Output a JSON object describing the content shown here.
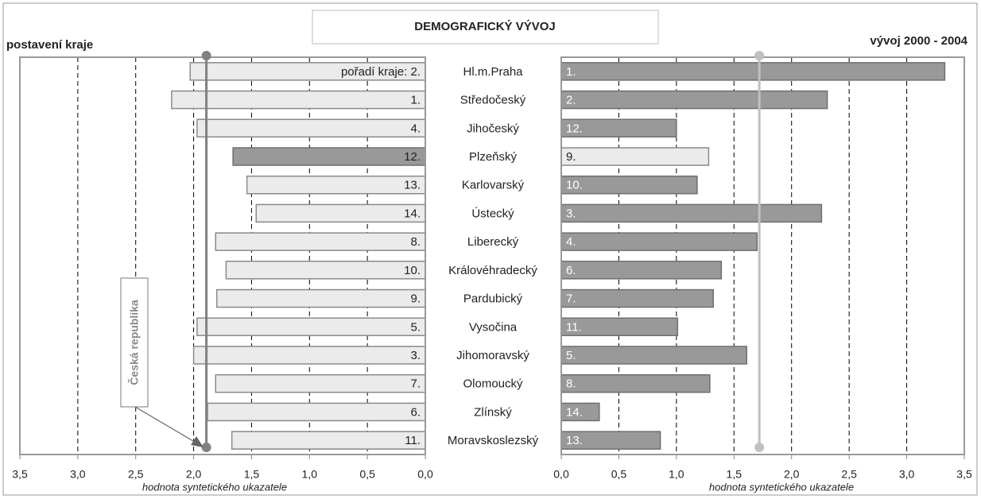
{
  "chart_data": {
    "type": "bar",
    "title": "DEMOGRAFICKÝ VÝVOJ",
    "categories": [
      "Hl.m.Praha",
      "Středočeský",
      "Jihočeský",
      "Plzeňský",
      "Karlovarský",
      "Ústecký",
      "Liberecký",
      "Královéhradecký",
      "Pardubický",
      "Vysočina",
      "Jihomoravský",
      "Olomoucký",
      "Zlínský",
      "Moravskoslezský"
    ],
    "left": {
      "label": "postavení kraje",
      "xlabel": "hodnota syntetického ukazatele",
      "reversed": true,
      "xlim": [
        0,
        3.5
      ],
      "xticks": [
        {
          "value": 0,
          "label": "0,0"
        },
        {
          "value": 0.5,
          "label": "0,5"
        },
        {
          "value": 1,
          "label": "1,0"
        },
        {
          "value": 1.5,
          "label": "1,5"
        },
        {
          "value": 2,
          "label": "2,0"
        },
        {
          "value": 2.5,
          "label": "2,5"
        },
        {
          "value": 3,
          "label": "3,0"
        },
        {
          "value": 3.5,
          "label": "3,5"
        }
      ],
      "values": [
        2.03,
        2.19,
        1.97,
        1.66,
        1.54,
        1.46,
        1.81,
        1.72,
        1.8,
        1.97,
        2.0,
        1.81,
        1.88,
        1.67
      ],
      "rank_labels": [
        "pořadí kraje: 2.",
        "1.",
        "4.",
        "12.",
        "13.",
        "14.",
        "8.",
        "10.",
        "9.",
        "5.",
        "3.",
        "7.",
        "6.",
        "11."
      ],
      "colors": [
        "#ebebeb",
        "#ebebeb",
        "#ebebeb",
        "#999999",
        "#ebebeb",
        "#ebebeb",
        "#ebebeb",
        "#ebebeb",
        "#ebebeb",
        "#ebebeb",
        "#ebebeb",
        "#ebebeb",
        "#ebebeb",
        "#ebebeb"
      ],
      "reference": {
        "name": "Česká republika",
        "value": 1.89,
        "color": "#808080"
      }
    },
    "right": {
      "label": "vývoj 2000 - 2004",
      "xlabel": "hodnota syntetického ukazatele",
      "reversed": false,
      "xlim": [
        0,
        3.5
      ],
      "xticks": [
        {
          "value": 0,
          "label": "0,0"
        },
        {
          "value": 0.5,
          "label": "0,5"
        },
        {
          "value": 1,
          "label": "1,0"
        },
        {
          "value": 1.5,
          "label": "1,5"
        },
        {
          "value": 2,
          "label": "2,0"
        },
        {
          "value": 2.5,
          "label": "2,5"
        },
        {
          "value": 3,
          "label": "3,0"
        },
        {
          "value": 3.5,
          "label": "3,5"
        }
      ],
      "values": [
        3.33,
        2.31,
        1.0,
        1.28,
        1.18,
        2.26,
        1.7,
        1.39,
        1.32,
        1.01,
        1.61,
        1.29,
        0.33,
        0.86
      ],
      "rank_labels": [
        "1.",
        "2.",
        "12.",
        "9.",
        "10.",
        "3.",
        "4.",
        "6.",
        "7.",
        "11.",
        "5.",
        "8.",
        "14.",
        "13."
      ],
      "colors": [
        "#999999",
        "#999999",
        "#999999",
        "#ebebeb",
        "#999999",
        "#999999",
        "#999999",
        "#999999",
        "#999999",
        "#999999",
        "#999999",
        "#999999",
        "#999999",
        "#999999"
      ],
      "reference": {
        "value": 1.72,
        "color": "#c0c0c0"
      }
    },
    "grid": true
  }
}
